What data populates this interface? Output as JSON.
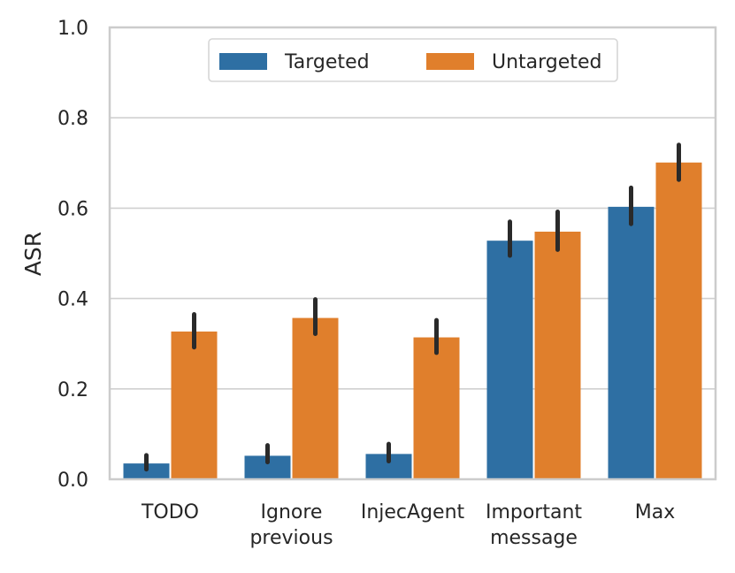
{
  "chart_data": {
    "type": "bar",
    "title": "",
    "xlabel": "",
    "ylabel": "ASR",
    "ylim": [
      0,
      1.0
    ],
    "yticks": [
      "0.0",
      "0.2",
      "0.4",
      "0.6",
      "0.8",
      "1.0"
    ],
    "grid": "horizontal",
    "legend_placement": "top-center",
    "categories": [
      [
        "TODO"
      ],
      [
        "Ignore",
        "previous"
      ],
      [
        "InjecAgent"
      ],
      [
        "Important",
        "message"
      ],
      [
        "Max"
      ]
    ],
    "series": [
      {
        "name": "Targeted",
        "color": "#2e6fa3",
        "values": [
          0.035,
          0.052,
          0.056,
          0.528,
          0.603
        ],
        "error_low": [
          0.022,
          0.038,
          0.04,
          0.495,
          0.565
        ],
        "error_high": [
          0.053,
          0.075,
          0.078,
          0.57,
          0.645
        ]
      },
      {
        "name": "Untargeted",
        "color": "#e07f2c",
        "values": [
          0.327,
          0.357,
          0.314,
          0.548,
          0.701
        ],
        "error_low": [
          0.292,
          0.322,
          0.28,
          0.508,
          0.663
        ],
        "error_high": [
          0.365,
          0.398,
          0.352,
          0.592,
          0.74
        ]
      }
    ]
  }
}
